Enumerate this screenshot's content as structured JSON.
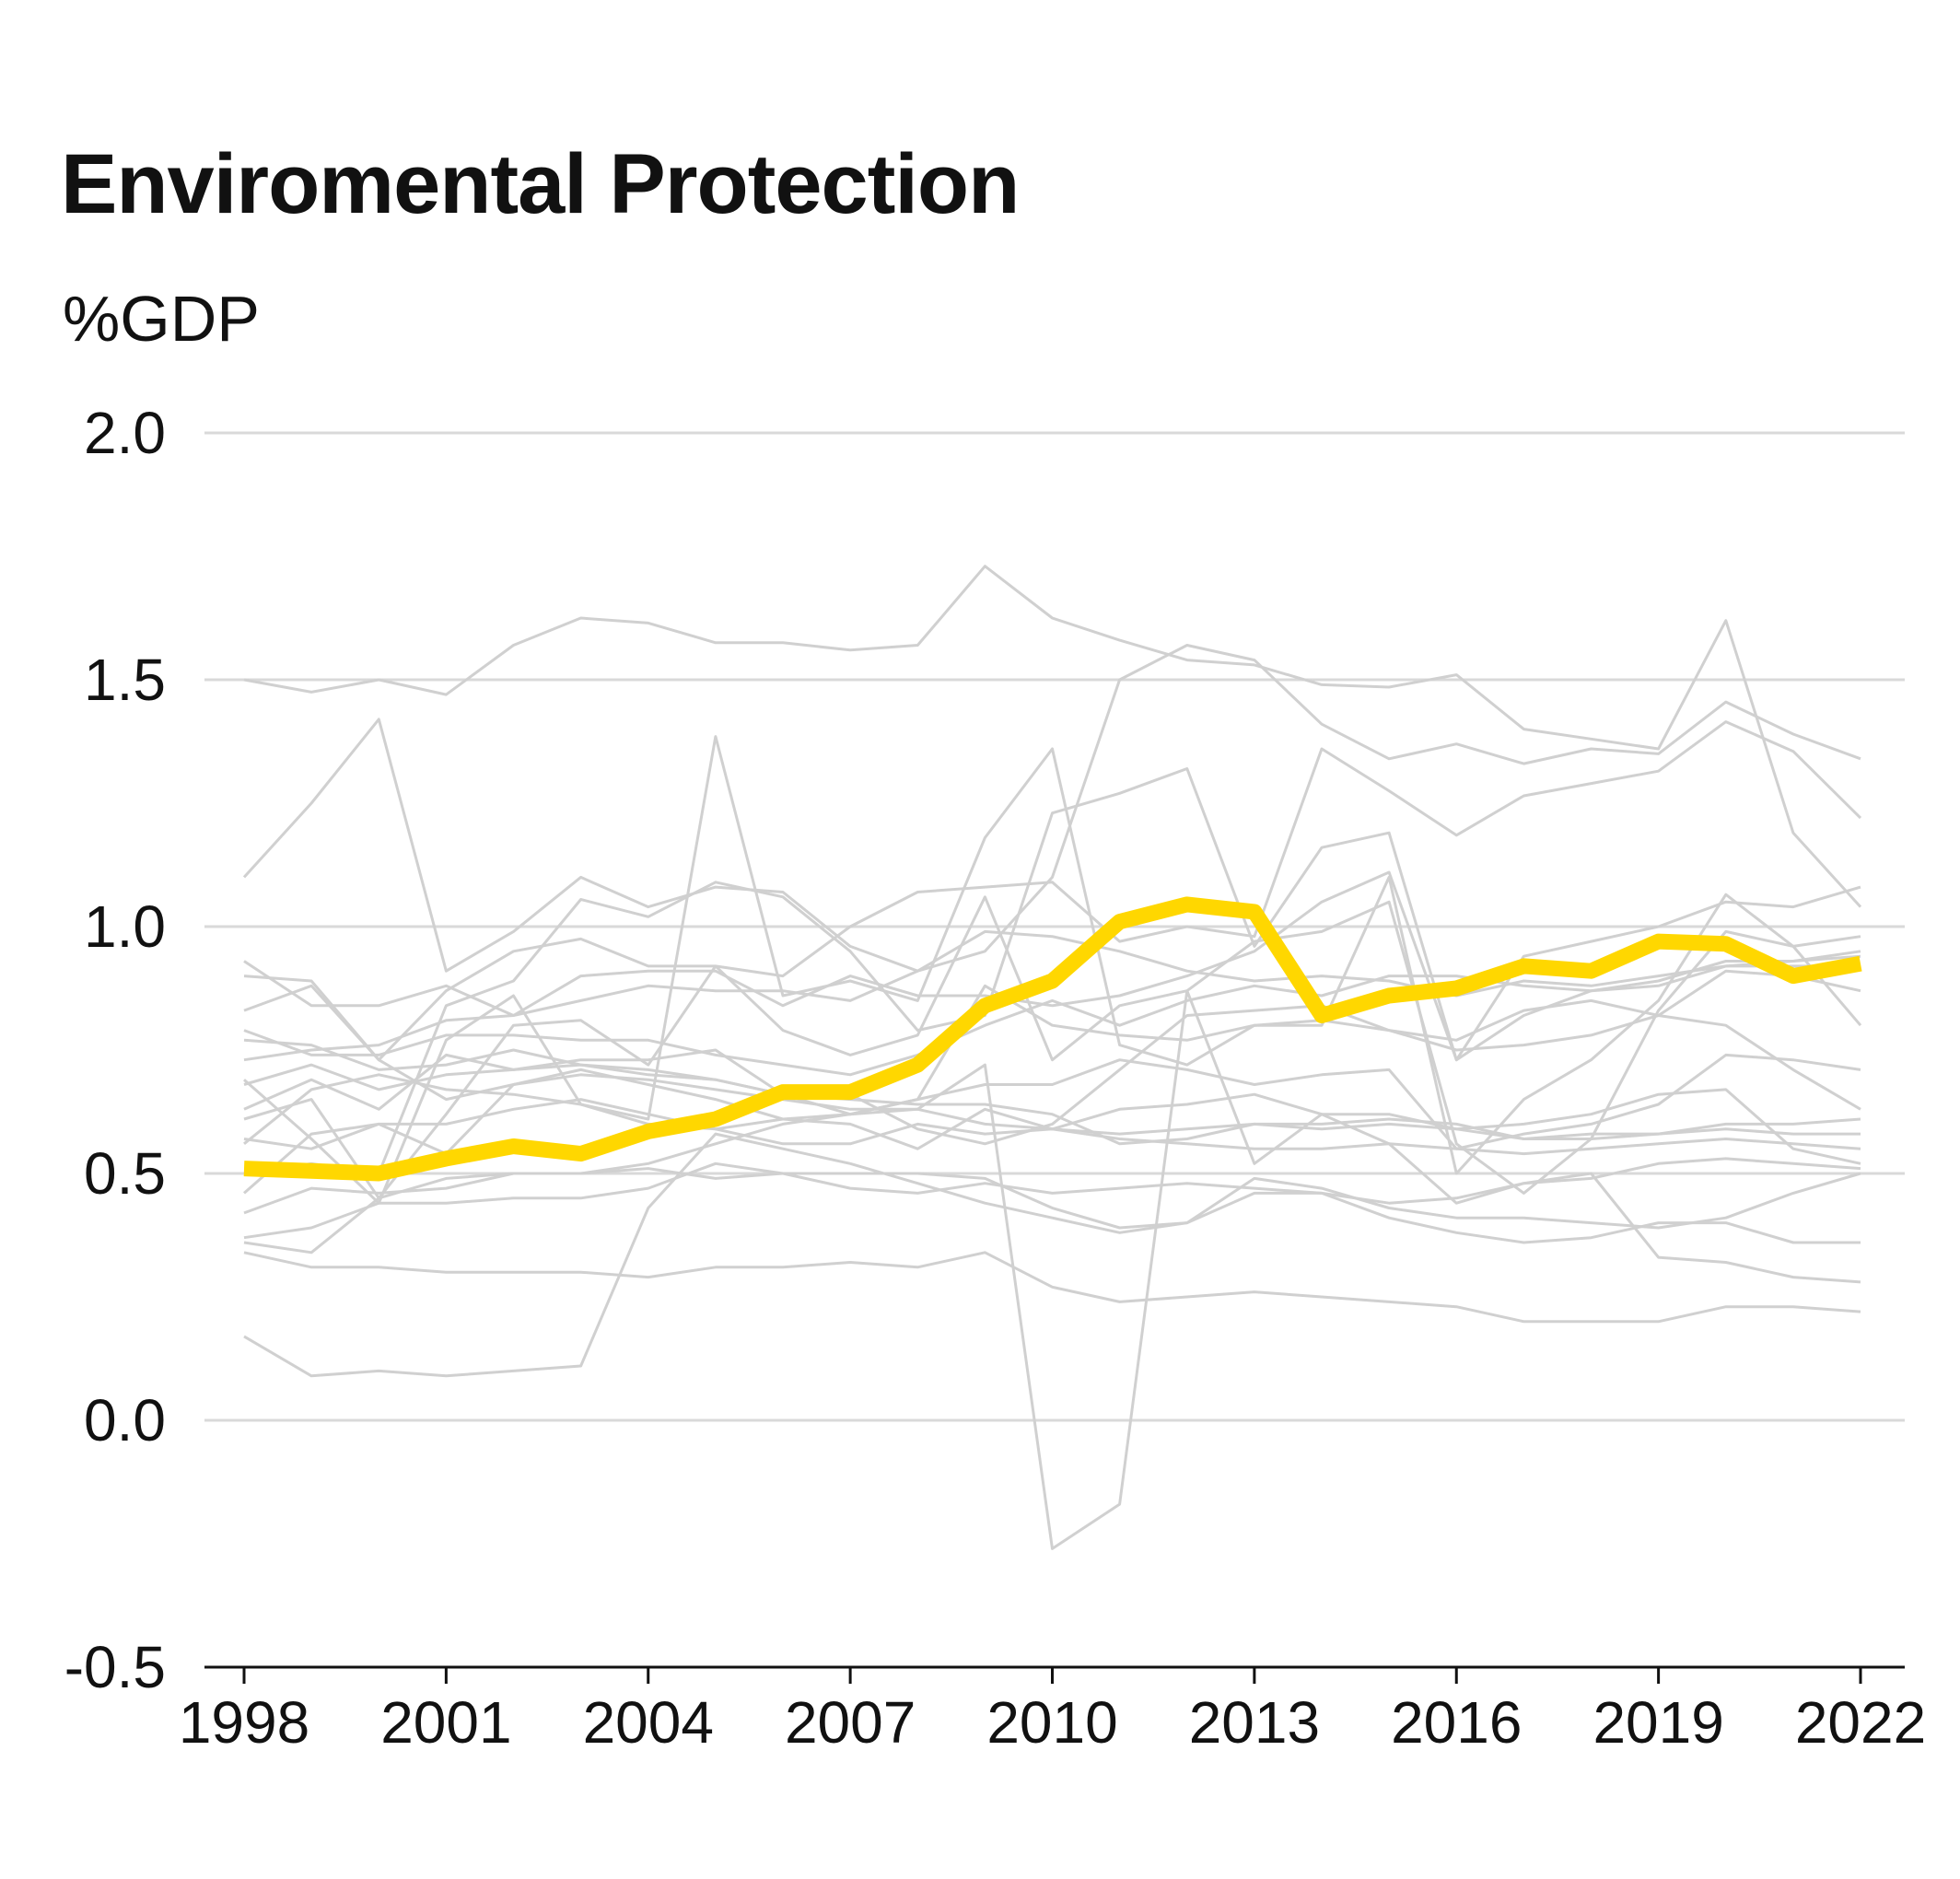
{
  "title": "Enviromental Protection",
  "subtitle": "%GDP",
  "colors": {
    "highlight": "#FFD700",
    "background_series": "#D0D0D0",
    "grid": "#D9D9D9",
    "axis": "#111111"
  },
  "chart_data": {
    "type": "line",
    "title": "Enviromental Protection",
    "ylabel": "%GDP",
    "xlabel": "",
    "xlim": [
      1998,
      2022
    ],
    "ylim": [
      -0.5,
      2.0
    ],
    "grid": true,
    "legend": "none",
    "x_ticks": [
      "1998",
      "2001",
      "2004",
      "2007",
      "2010",
      "2013",
      "2016",
      "2019",
      "2022"
    ],
    "y_ticks": [
      "-0.5",
      "0.0",
      "0.5",
      "1.0",
      "1.5",
      "2.0"
    ],
    "x": [
      1998,
      1999,
      2000,
      2001,
      2002,
      2003,
      2004,
      2005,
      2006,
      2007,
      2008,
      2009,
      2010,
      2011,
      2012,
      2013,
      2014,
      2015,
      2016,
      2017,
      2018,
      2019,
      2020,
      2021,
      2022
    ],
    "highlight": {
      "values": [
        0.51,
        0.505,
        0.5,
        0.53,
        0.555,
        0.54,
        0.585,
        0.61,
        0.665,
        0.665,
        0.72,
        0.84,
        0.89,
        1.01,
        1.045,
        1.03,
        0.82,
        0.86,
        0.875,
        0.92,
        0.91,
        0.97,
        0.965,
        0.9,
        0.925
      ]
    },
    "series": [
      {
        "values": [
          1.5,
          1.475,
          1.5,
          1.47,
          1.57,
          1.625,
          1.615,
          1.575,
          1.575,
          1.56,
          1.57,
          1.73,
          1.625,
          1.58,
          1.54,
          1.53,
          1.49,
          1.485,
          1.51,
          1.4,
          1.38,
          1.36,
          1.62,
          1.19,
          1.04
        ]
      },
      {
        "values": [
          1.1,
          1.25,
          1.42,
          0.91,
          0.99,
          1.1,
          1.04,
          1.08,
          1.07,
          0.96,
          0.91,
          0.95,
          1.1,
          1.5,
          1.57,
          1.54,
          1.41,
          1.34,
          1.37,
          1.33,
          1.36,
          1.35,
          1.455,
          1.39,
          1.34
        ]
      },
      {
        "values": [
          0.83,
          0.88,
          0.73,
          0.87,
          0.95,
          0.975,
          0.92,
          0.92,
          0.9,
          1.0,
          1.07,
          1.08,
          1.09,
          0.97,
          1.0,
          0.98,
          1.36,
          1.275,
          1.185,
          1.265,
          1.29,
          1.315,
          1.415,
          1.355,
          1.22
        ]
      },
      {
        "values": [
          0.69,
          0.57,
          0.44,
          0.77,
          0.86,
          0.64,
          0.61,
          1.385,
          0.86,
          0.89,
          0.85,
          1.18,
          1.36,
          0.76,
          0.72,
          0.8,
          0.8,
          1.1,
          0.5,
          0.65,
          0.73,
          0.85,
          1.065,
          0.96,
          0.8
        ]
      },
      {
        "values": [
          0.61,
          0.65,
          0.45,
          0.62,
          0.8,
          0.81,
          0.72,
          0.92,
          0.79,
          0.74,
          0.78,
          1.06,
          0.73,
          0.84,
          0.87,
          0.97,
          0.99,
          1.05,
          0.56,
          0.46,
          0.57,
          0.83,
          0.99,
          0.96,
          0.98
        ]
      },
      {
        "values": [
          0.5,
          0.52,
          0.5,
          0.84,
          0.89,
          1.055,
          1.02,
          1.09,
          1.06,
          0.95,
          0.79,
          0.82,
          1.23,
          1.27,
          1.32,
          0.96,
          1.16,
          1.19,
          0.73,
          0.94,
          0.97,
          1.0,
          1.05,
          1.04,
          1.08
        ]
      },
      {
        "values": [
          0.93,
          0.84,
          0.84,
          0.88,
          0.82,
          0.9,
          0.91,
          0.91,
          0.84,
          0.9,
          0.86,
          0.86,
          0.84,
          0.86,
          0.9,
          0.95,
          1.05,
          1.11,
          0.73,
          0.82,
          0.87,
          0.89,
          0.93,
          0.93,
          0.94
        ]
      },
      {
        "values": [
          0.73,
          0.75,
          0.76,
          0.81,
          0.82,
          0.85,
          0.88,
          0.87,
          0.87,
          0.85,
          0.91,
          0.99,
          0.98,
          0.95,
          0.91,
          0.89,
          0.9,
          0.89,
          0.86,
          0.89,
          0.88,
          0.9,
          0.92,
          0.93,
          0.95
        ]
      },
      {
        "values": [
          0.79,
          0.74,
          0.74,
          0.78,
          0.78,
          0.77,
          0.77,
          0.74,
          0.72,
          0.7,
          0.74,
          0.8,
          0.85,
          0.8,
          0.85,
          0.88,
          0.86,
          0.9,
          0.9,
          0.88,
          0.87,
          0.88,
          0.92,
          0.92,
          0.92
        ]
      },
      {
        "values": [
          0.68,
          0.72,
          0.67,
          0.7,
          0.71,
          0.72,
          0.7,
          0.69,
          0.66,
          0.62,
          0.65,
          0.88,
          0.8,
          0.78,
          0.77,
          0.8,
          0.81,
          0.79,
          0.75,
          0.76,
          0.78,
          0.82,
          0.91,
          0.9,
          0.87
        ]
      },
      {
        "values": [
          0.63,
          0.69,
          0.63,
          0.74,
          0.71,
          0.73,
          0.73,
          0.75,
          0.66,
          0.66,
          0.59,
          0.56,
          0.6,
          0.71,
          0.82,
          0.83,
          0.84,
          0.79,
          0.77,
          0.83,
          0.85,
          0.82,
          0.8,
          0.71,
          0.63
        ]
      },
      {
        "values": [
          0.56,
          0.67,
          0.7,
          0.67,
          0.66,
          0.64,
          0.6,
          0.59,
          0.61,
          0.62,
          0.65,
          0.68,
          0.68,
          0.73,
          0.71,
          0.68,
          0.7,
          0.71,
          0.55,
          0.58,
          0.6,
          0.64,
          0.74,
          0.73,
          0.71
        ]
      },
      {
        "values": [
          0.46,
          0.58,
          0.6,
          0.54,
          0.68,
          0.71,
          0.68,
          0.65,
          0.61,
          0.6,
          0.55,
          0.63,
          0.59,
          0.63,
          0.64,
          0.66,
          0.62,
          0.62,
          0.59,
          0.6,
          0.62,
          0.66,
          0.67,
          0.55,
          0.52
        ]
      },
      {
        "values": [
          0.42,
          0.47,
          0.46,
          0.47,
          0.5,
          0.5,
          0.52,
          0.56,
          0.6,
          0.62,
          0.63,
          0.6,
          0.59,
          0.58,
          0.59,
          0.6,
          0.59,
          0.6,
          0.59,
          0.57,
          0.57,
          0.58,
          0.6,
          0.6,
          0.61
        ]
      },
      {
        "values": [
          0.57,
          0.55,
          0.6,
          0.6,
          0.63,
          0.65,
          0.62,
          0.59,
          0.56,
          0.56,
          0.6,
          0.58,
          0.59,
          0.57,
          0.56,
          0.55,
          0.55,
          0.56,
          0.55,
          0.54,
          0.55,
          0.56,
          0.57,
          0.56,
          0.55
        ]
      },
      {
        "values": [
          0.37,
          0.39,
          0.44,
          0.44,
          0.45,
          0.45,
          0.47,
          0.52,
          0.5,
          0.47,
          0.46,
          0.48,
          0.46,
          0.47,
          0.48,
          0.47,
          0.46,
          0.44,
          0.45,
          0.48,
          0.49,
          0.52,
          0.53,
          0.52,
          0.51
        ]
      },
      {
        "values": [
          0.36,
          0.34,
          0.45,
          0.49,
          0.5,
          0.5,
          0.51,
          0.49,
          0.5,
          0.5,
          0.5,
          0.49,
          0.43,
          0.39,
          0.4,
          0.49,
          0.47,
          0.43,
          0.41,
          0.41,
          0.4,
          0.39,
          0.41,
          0.46,
          0.5
        ]
      },
      {
        "values": [
          0.34,
          0.31,
          0.31,
          0.3,
          0.3,
          0.3,
          0.29,
          0.31,
          0.31,
          0.32,
          0.31,
          0.34,
          0.27,
          0.24,
          0.25,
          0.26,
          0.25,
          0.24,
          0.23,
          0.2,
          0.2,
          0.2,
          0.23,
          0.23,
          0.22
        ]
      },
      {
        "values": [
          0.17,
          0.09,
          0.1,
          0.09,
          0.1,
          0.11,
          0.43,
          0.58,
          0.55,
          0.52,
          0.48,
          0.44,
          0.41,
          0.38,
          0.4,
          0.46,
          0.46,
          0.41,
          0.38,
          0.36,
          0.37,
          0.4,
          0.4,
          0.36,
          0.36
        ]
      },
      {
        "values": [
          0.9,
          0.89,
          0.73,
          0.65,
          0.68,
          0.7,
          0.69,
          0.67,
          0.65,
          0.63,
          0.63,
          0.72,
          -0.26,
          -0.17,
          0.87,
          0.52,
          0.62,
          0.56,
          0.44,
          0.48,
          0.5,
          0.33,
          0.32,
          0.29,
          0.28
        ]
      },
      {
        "values": [
          0.77,
          0.76,
          0.71,
          0.72,
          0.75,
          0.72,
          0.71,
          0.69,
          0.66,
          0.65,
          0.64,
          0.64,
          0.62,
          0.56,
          0.57,
          0.6,
          0.6,
          0.61,
          0.6,
          0.57,
          0.58,
          0.58,
          0.59,
          0.58,
          0.58
        ]
      }
    ]
  }
}
